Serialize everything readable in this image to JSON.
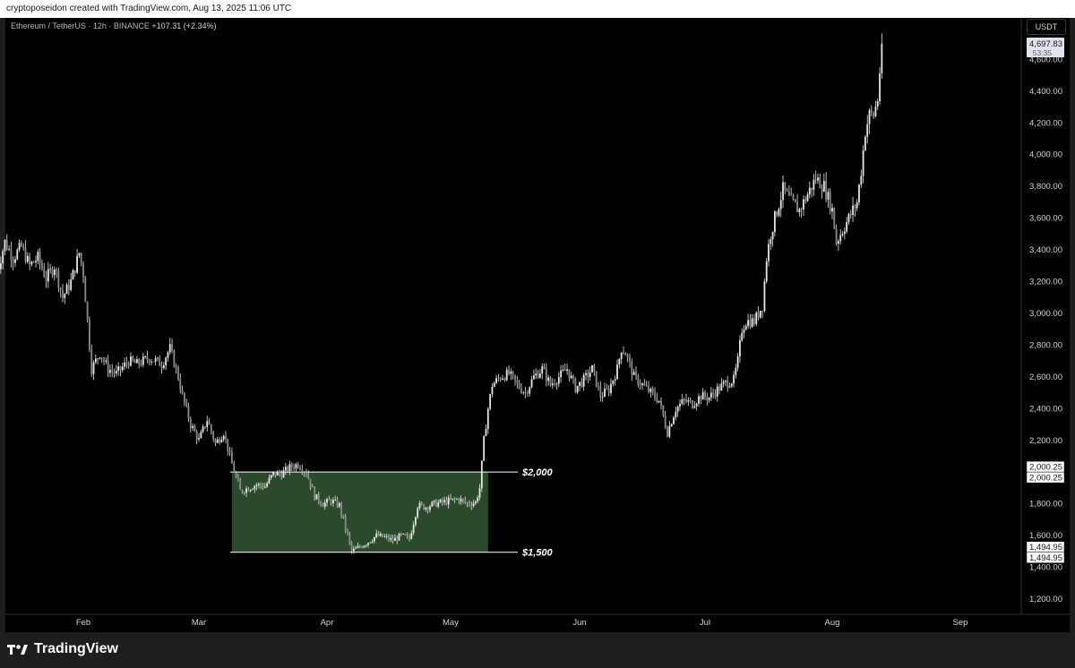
{
  "header": {
    "attribution": "cryptoposeidon created with TradingView.com, Aug 13, 2025 11:06 UTC"
  },
  "symbol_bar": {
    "symbol": "Ethereum / TetherUS · 12h · BINANCE",
    "change": "+107.31 (+2.34%)"
  },
  "currency_label": "USDT",
  "footer": {
    "brand": "TradingView"
  },
  "colors": {
    "background": "#000000",
    "candle": "#e6e6e6",
    "zone_fill": "#2b4a2b",
    "level_line": "#ffffff",
    "axis_text": "#d1d4dc"
  },
  "chart_data": {
    "type": "candlestick",
    "ylim": [
      1100,
      4800
    ],
    "y_ticks": [
      "1,200.00",
      "1,400.00",
      "1,600.00",
      "1,800.00",
      "2,000.00",
      "2,200.00",
      "2,400.00",
      "2,600.00",
      "2,800.00",
      "3,000.00",
      "3,200.00",
      "3,400.00",
      "3,600.00",
      "3,800.00",
      "4,000.00",
      "4,200.00",
      "4,400.00",
      "4,600.00"
    ],
    "x_ticks": [
      "Feb",
      "Mar",
      "Apr",
      "May",
      "Jun",
      "Jul",
      "Aug",
      "Sep"
    ],
    "last_price": {
      "value": "4,697.83",
      "countdown": "53:35"
    },
    "price_labels": [
      "2,000.25",
      "2,000.25",
      "1,494.95",
      "1,494.95"
    ],
    "zone": {
      "from": "2025-03-09",
      "to": "2025-05-10",
      "low": 1494.95,
      "high": 2000.25
    },
    "levels": [
      {
        "value": 2000.25,
        "label": "$2,000"
      },
      {
        "value": 1494.95,
        "label": "$1,500"
      }
    ],
    "close_path": [
      [
        "2025-01-11",
        3250
      ],
      [
        "2025-01-12",
        3350
      ],
      [
        "2025-01-13",
        3450
      ],
      [
        "2025-01-15",
        3350
      ],
      [
        "2025-01-17",
        3420
      ],
      [
        "2025-01-19",
        3300
      ],
      [
        "2025-01-21",
        3350
      ],
      [
        "2025-01-23",
        3220
      ],
      [
        "2025-01-25",
        3300
      ],
      [
        "2025-01-27",
        3100
      ],
      [
        "2025-01-29",
        3200
      ],
      [
        "2025-01-31",
        3380
      ],
      [
        "2025-02-01",
        3250
      ],
      [
        "2025-02-02",
        2950
      ],
      [
        "2025-02-03",
        2650
      ],
      [
        "2025-02-05",
        2750
      ],
      [
        "2025-02-07",
        2650
      ],
      [
        "2025-02-09",
        2620
      ],
      [
        "2025-02-12",
        2700
      ],
      [
        "2025-02-14",
        2680
      ],
      [
        "2025-02-17",
        2720
      ],
      [
        "2025-02-20",
        2680
      ],
      [
        "2025-02-22",
        2780
      ],
      [
        "2025-02-24",
        2600
      ],
      [
        "2025-02-25",
        2480
      ],
      [
        "2025-02-27",
        2300
      ],
      [
        "2025-03-01",
        2200
      ],
      [
        "2025-03-03",
        2330
      ],
      [
        "2025-03-05",
        2180
      ],
      [
        "2025-03-07",
        2250
      ],
      [
        "2025-03-09",
        2050
      ],
      [
        "2025-03-11",
        1880
      ],
      [
        "2025-03-13",
        1900
      ],
      [
        "2025-03-15",
        1920
      ],
      [
        "2025-03-17",
        1910
      ],
      [
        "2025-03-19",
        1990
      ],
      [
        "2025-03-21",
        1990
      ],
      [
        "2025-03-23",
        2030
      ],
      [
        "2025-03-25",
        2050
      ],
      [
        "2025-03-27",
        2000
      ],
      [
        "2025-03-29",
        1850
      ],
      [
        "2025-03-31",
        1800
      ],
      [
        "2025-04-02",
        1820
      ],
      [
        "2025-04-04",
        1790
      ],
      [
        "2025-04-06",
        1600
      ],
      [
        "2025-04-07",
        1500
      ],
      [
        "2025-04-09",
        1530
      ],
      [
        "2025-04-11",
        1560
      ],
      [
        "2025-04-13",
        1600
      ],
      [
        "2025-04-15",
        1590
      ],
      [
        "2025-04-17",
        1570
      ],
      [
        "2025-04-19",
        1600
      ],
      [
        "2025-04-21",
        1580
      ],
      [
        "2025-04-23",
        1790
      ],
      [
        "2025-04-25",
        1780
      ],
      [
        "2025-04-27",
        1800
      ],
      [
        "2025-04-29",
        1810
      ],
      [
        "2025-05-01",
        1820
      ],
      [
        "2025-05-03",
        1830
      ],
      [
        "2025-05-05",
        1800
      ],
      [
        "2025-05-07",
        1810
      ],
      [
        "2025-05-08",
        1900
      ],
      [
        "2025-05-09",
        2200
      ],
      [
        "2025-05-10",
        2400
      ],
      [
        "2025-05-11",
        2550
      ],
      [
        "2025-05-13",
        2600
      ],
      [
        "2025-05-15",
        2620
      ],
      [
        "2025-05-17",
        2550
      ],
      [
        "2025-05-19",
        2500
      ],
      [
        "2025-05-21",
        2600
      ],
      [
        "2025-05-23",
        2650
      ],
      [
        "2025-05-25",
        2550
      ],
      [
        "2025-05-27",
        2600
      ],
      [
        "2025-05-29",
        2650
      ],
      [
        "2025-05-31",
        2530
      ],
      [
        "2025-06-02",
        2580
      ],
      [
        "2025-06-04",
        2650
      ],
      [
        "2025-06-06",
        2480
      ],
      [
        "2025-06-08",
        2520
      ],
      [
        "2025-06-10",
        2650
      ],
      [
        "2025-06-11",
        2780
      ],
      [
        "2025-06-12",
        2750
      ],
      [
        "2025-06-14",
        2600
      ],
      [
        "2025-06-16",
        2550
      ],
      [
        "2025-06-18",
        2500
      ],
      [
        "2025-06-20",
        2450
      ],
      [
        "2025-06-22",
        2250
      ],
      [
        "2025-06-24",
        2400
      ],
      [
        "2025-06-26",
        2450
      ],
      [
        "2025-06-28",
        2430
      ],
      [
        "2025-06-30",
        2480
      ],
      [
        "2025-07-02",
        2470
      ],
      [
        "2025-07-04",
        2520
      ],
      [
        "2025-07-06",
        2560
      ],
      [
        "2025-07-08",
        2580
      ],
      [
        "2025-07-09",
        2700
      ],
      [
        "2025-07-10",
        2900
      ],
      [
        "2025-07-11",
        2950
      ],
      [
        "2025-07-13",
        2950
      ],
      [
        "2025-07-15",
        3050
      ],
      [
        "2025-07-16",
        3350
      ],
      [
        "2025-07-17",
        3500
      ],
      [
        "2025-07-18",
        3600
      ],
      [
        "2025-07-20",
        3780
      ],
      [
        "2025-07-22",
        3700
      ],
      [
        "2025-07-24",
        3650
      ],
      [
        "2025-07-26",
        3750
      ],
      [
        "2025-07-28",
        3850
      ],
      [
        "2025-07-30",
        3800
      ],
      [
        "2025-08-01",
        3650
      ],
      [
        "2025-08-02",
        3450
      ],
      [
        "2025-08-03",
        3500
      ],
      [
        "2025-08-05",
        3600
      ],
      [
        "2025-08-07",
        3700
      ],
      [
        "2025-08-08",
        3900
      ],
      [
        "2025-08-09",
        4150
      ],
      [
        "2025-08-10",
        4250
      ],
      [
        "2025-08-11",
        4250
      ],
      [
        "2025-08-12",
        4350
      ],
      [
        "2025-08-13",
        4697.83
      ]
    ]
  }
}
